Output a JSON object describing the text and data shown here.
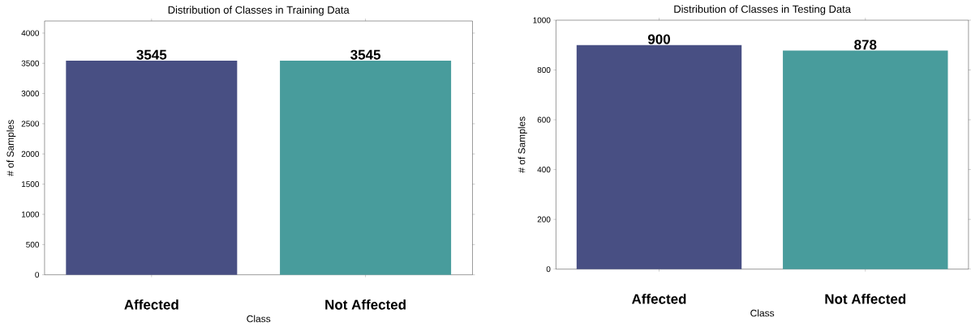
{
  "chart_data": [
    {
      "type": "bar",
      "title": "Distribution of Classes in Training Data",
      "xlabel": "Class",
      "ylabel": "# of Samples",
      "categories": [
        "Affected",
        "Not Affected"
      ],
      "values": [
        3545,
        3545
      ],
      "colors": [
        "#484f83",
        "#489c9c"
      ],
      "ylim": [
        0,
        4200
      ],
      "yticks": [
        0,
        500,
        1000,
        1500,
        2000,
        2500,
        3000,
        3500,
        4000
      ],
      "data_labels": true
    },
    {
      "type": "bar",
      "title": "Distribution of Classes in Testing Data",
      "xlabel": "Class",
      "ylabel": "# of Samples",
      "categories": [
        "Affected",
        "Not Affected"
      ],
      "values": [
        900,
        878
      ],
      "colors": [
        "#484f83",
        "#489c9c"
      ],
      "ylim": [
        0,
        1000
      ],
      "yticks": [
        0,
        200,
        400,
        600,
        800,
        1000
      ],
      "data_labels": true
    }
  ]
}
